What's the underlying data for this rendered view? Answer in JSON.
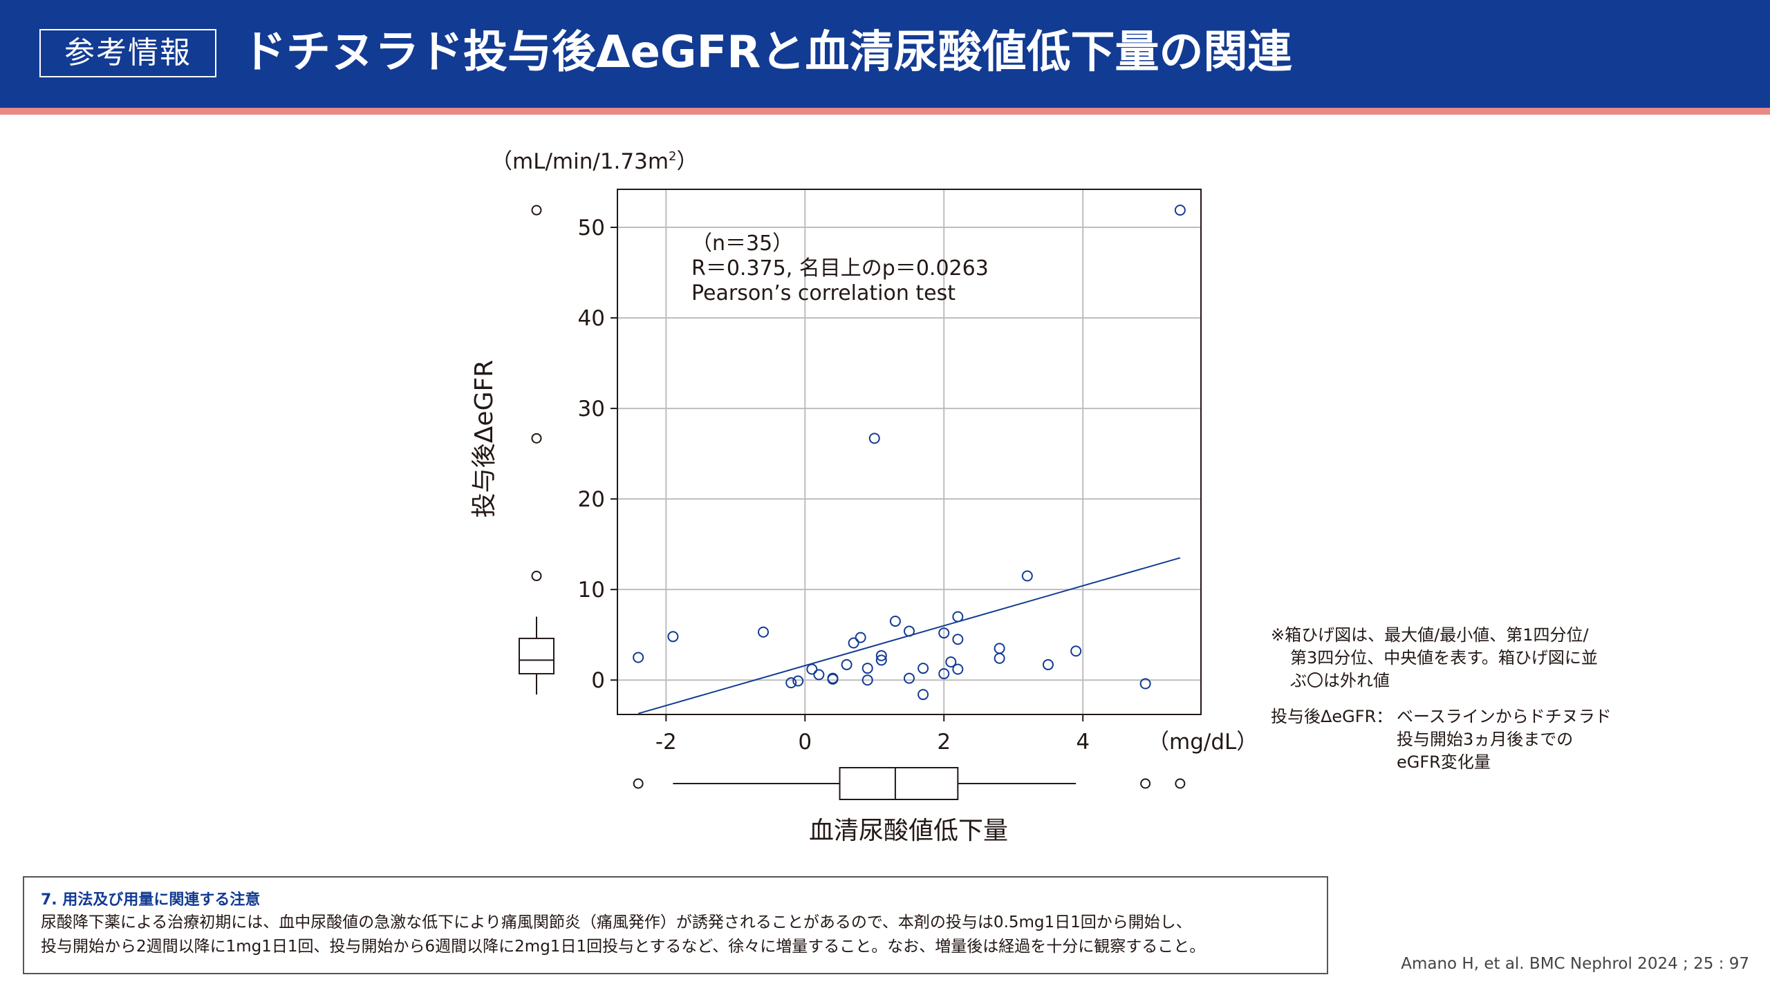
{
  "header": {
    "badge": "参考情報",
    "title": "ドチヌラド投与後ΔeGFRと血清尿酸値低下量の関連"
  },
  "colors": {
    "header_bg": "#123b93",
    "accent_stripe": "#e98a87",
    "marker": "#123b93",
    "regression_line": "#123b93",
    "grid": "#bdbdbd"
  },
  "chart_data": {
    "type": "scatter",
    "xlabel": "血清尿酸値低下量",
    "ylabel": "投与後ΔeGFR",
    "x_unit": "（mg/dL）",
    "y_unit": "（mL/min/1.73m",
    "y_unit_sup": "2",
    "y_unit_close": "）",
    "xlim": [
      -2.7,
      5.7
    ],
    "ylim": [
      -3.8,
      54.2
    ],
    "x_ticks": [
      -2,
      0,
      2,
      4
    ],
    "y_ticks": [
      0,
      10,
      20,
      30,
      40,
      50
    ],
    "grid": true,
    "marker": "open-circle",
    "annotation": [
      "（n＝35）",
      "R＝0.375, 名目上のp＝0.0263",
      "Pearson’s correlation test"
    ],
    "regression_line": {
      "x": [
        -2.4,
        5.4
      ],
      "y": [
        -3.7,
        13.5
      ]
    },
    "points": [
      {
        "x": -2.4,
        "y": 2.5
      },
      {
        "x": -1.9,
        "y": 4.8
      },
      {
        "x": -0.6,
        "y": 5.3
      },
      {
        "x": -0.2,
        "y": -0.3
      },
      {
        "x": -0.1,
        "y": -0.1
      },
      {
        "x": 0.1,
        "y": 1.2
      },
      {
        "x": 0.2,
        "y": 0.6
      },
      {
        "x": 0.4,
        "y": 0.2
      },
      {
        "x": 0.4,
        "y": 0.1
      },
      {
        "x": 0.6,
        "y": 1.7
      },
      {
        "x": 0.7,
        "y": 4.1
      },
      {
        "x": 0.8,
        "y": 4.7
      },
      {
        "x": 0.9,
        "y": 1.3
      },
      {
        "x": 0.9,
        "y": 0.0
      },
      {
        "x": 1.0,
        "y": 26.7
      },
      {
        "x": 1.1,
        "y": 2.2
      },
      {
        "x": 1.1,
        "y": 2.7
      },
      {
        "x": 1.3,
        "y": 6.5
      },
      {
        "x": 1.5,
        "y": 5.4
      },
      {
        "x": 1.5,
        "y": 0.2
      },
      {
        "x": 1.7,
        "y": 1.3
      },
      {
        "x": 1.7,
        "y": -1.6
      },
      {
        "x": 2.0,
        "y": 5.2
      },
      {
        "x": 2.0,
        "y": 0.7
      },
      {
        "x": 2.1,
        "y": 2.0
      },
      {
        "x": 2.2,
        "y": 7.0
      },
      {
        "x": 2.2,
        "y": 4.5
      },
      {
        "x": 2.2,
        "y": 1.2
      },
      {
        "x": 2.8,
        "y": 3.5
      },
      {
        "x": 2.8,
        "y": 2.4
      },
      {
        "x": 3.2,
        "y": 11.5
      },
      {
        "x": 3.5,
        "y": 1.7
      },
      {
        "x": 3.9,
        "y": 3.2
      },
      {
        "x": 4.9,
        "y": -0.4
      },
      {
        "x": 5.4,
        "y": 51.9
      }
    ],
    "boxplot_x": {
      "whisker_low": -1.9,
      "q1": 0.5,
      "median": 1.3,
      "q3": 2.2,
      "whisker_high": 3.9,
      "outliers": [
        -2.4,
        4.9,
        5.4
      ]
    },
    "boxplot_y": {
      "whisker_low": -1.6,
      "q1": 0.7,
      "median": 2.2,
      "q3": 4.6,
      "whisker_high": 7.0,
      "outliers": [
        11.5,
        26.7,
        51.9
      ]
    }
  },
  "legend": {
    "note_lines": [
      "※箱ひげ図は、最大値/最小値、第1四分位/",
      "第3四分位、中央値を表す。箱ひげ図に並",
      "ぶ〇は外れ値"
    ],
    "term": "投与後ΔeGFR：",
    "desc_lines": [
      "ベースラインからドチヌラド",
      "投与開始3ヵ月後までの",
      "eGFR変化量"
    ]
  },
  "caution": {
    "title": "7. 用法及び用量に関連する注意",
    "lines": [
      "尿酸降下薬による治療初期には、血中尿酸値の急激な低下により痛風関節炎（痛風発作）が誘発されることがあるので、本剤の投与は0.5mg1日1回から開始し、",
      "投与開始から2週間以降に1mg1日1回、投与開始から6週間以降に2mg1日1回投与とするなど、徐々に増量すること。なお、増量後は経過を十分に観察すること。"
    ]
  },
  "citation": "Amano H, et al. BMC Nephrol 2024 ; 25 : 97"
}
